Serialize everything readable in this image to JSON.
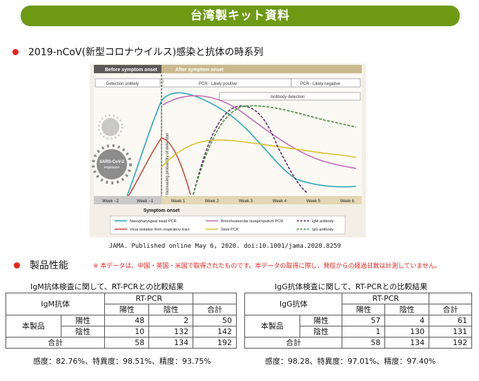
{
  "banner": {
    "title": "台湾製キット資料"
  },
  "section1": {
    "heading": "2019-nCoV(新型コロナウイルス)感染と抗体の時系列"
  },
  "figure": {
    "before_label": "Before symptom onset",
    "after_label": "After symptom onset",
    "detection_unlikely": "Detection unlikely",
    "pcr_likely_positive": "PCR - Likely positive",
    "pcr_likely_negative": "PCR - Likely negative",
    "antibody_detection": "Antibody detection",
    "y_axis_label": "Increasing probability of detection",
    "virus_label_line1": "SARS-CoV-2",
    "virus_label_line2": "exposure",
    "x_ticks": [
      "Week −2",
      "Week −1",
      "Week 1",
      "Week 2",
      "Week 3",
      "Week 4",
      "Week 5",
      "Week 6"
    ],
    "x_axis_title": "Symptom onset",
    "legend": [
      {
        "label": "Nasopharyngeal swab PCR",
        "color": "#2aa6b8",
        "dash": false
      },
      {
        "label": "Virus isolation from respiratory tract",
        "color": "#c4473b",
        "dash": false
      },
      {
        "label": "Bronchoalveolar lavage/sputum PCR",
        "color": "#c466b5",
        "dash": false
      },
      {
        "label": "Stool PCR",
        "color": "#d9c130",
        "dash": false
      },
      {
        "label": "IgM antibody",
        "color": "#5a2a6a",
        "dash": true
      },
      {
        "label": "IgG antibody",
        "color": "#3f8a3a",
        "dash": true
      }
    ]
  },
  "citation": "JAMA. Published online May 6, 2020. doi:10.1001/jama.2020.8259",
  "section2": {
    "heading": "製品性能",
    "note": "※ 本データは、中国・英国・米国で取得されたものです。本データの取得に際し、発症からの経過日数は計測していません。"
  },
  "igm_table": {
    "caption": "IgM抗体検査に関して、RT-PCRとの比較結果",
    "corner": "IgM抗体",
    "ref_header": "RT-PCR",
    "cols": [
      "陽性",
      "陰性",
      "合計"
    ],
    "row_group": "本製品",
    "rows": [
      {
        "label": "陽性",
        "values": [
          "48",
          "2",
          "50"
        ]
      },
      {
        "label": "陰性",
        "values": [
          "10",
          "132",
          "142"
        ]
      }
    ],
    "total_label": "合計",
    "totals": [
      "58",
      "134",
      "192"
    ],
    "metrics": "感度：82.76%、特異度：98.51%、精度：93.75%"
  },
  "igg_table": {
    "caption": "IgG抗体検査に関して、RT-PCRとの比較結果",
    "corner": "IgG抗体",
    "ref_header": "RT-PCR",
    "cols": [
      "陽性",
      "陰性",
      "合計"
    ],
    "row_group": "本製品",
    "rows": [
      {
        "label": "陽性",
        "values": [
          "57",
          "4",
          "61"
        ]
      },
      {
        "label": "陰性",
        "values": [
          "1",
          "130",
          "131"
        ]
      }
    ],
    "total_label": "合計",
    "totals": [
      "58",
      "134",
      "192"
    ],
    "metrics": "感度：98.28、特異度：97.01%、精度：97.40%"
  }
}
